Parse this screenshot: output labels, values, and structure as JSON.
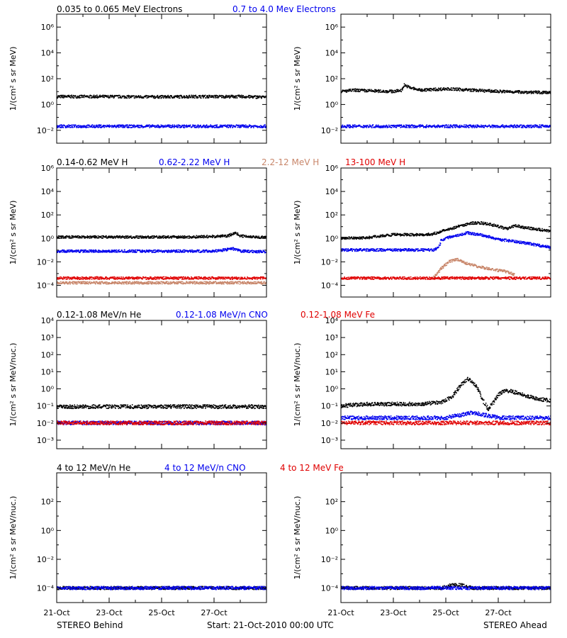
{
  "footer": {
    "left": "STEREO Behind",
    "center": "Start: 21-Oct-2010 00:00 UTC",
    "right": "STEREO Ahead"
  },
  "colors": {
    "black": "#000000",
    "blue": "#0000ee",
    "tan": "#c8866a",
    "red": "#e00000"
  },
  "chart_data": [
    {
      "type": "scatter",
      "row": "electrons",
      "legend": [
        {
          "label": "0.035 to 0.065 MeV Electrons",
          "color": "#000000"
        },
        {
          "label": "0.7 to 4.0 Mev Electrons",
          "color": "#0000ee"
        }
      ],
      "ylabel": "1/(cm² s sr MeV)",
      "y_scale": "log",
      "ylim_log10": [
        -3,
        7
      ],
      "y_tick_exponents": [
        -2,
        0,
        2,
        4,
        6
      ],
      "xlim": [
        0,
        8
      ],
      "x_ticks": [
        "21-Oct",
        "23-Oct",
        "25-Oct",
        "27-Oct"
      ],
      "panels": [
        {
          "name": "STEREO Behind",
          "series": [
            {
              "name": "0.035 to 0.065 MeV Electrons",
              "color": "#000000",
              "x": [
                0,
                1,
                2,
                3,
                4,
                5,
                6,
                7,
                8
              ],
              "log10_y": [
                0.6,
                0.6,
                0.6,
                0.58,
                0.58,
                0.6,
                0.6,
                0.6,
                0.55
              ]
            },
            {
              "name": "0.7 to 4.0 Mev Electrons",
              "color": "#0000ee",
              "x": [
                0,
                1,
                2,
                3,
                4,
                5,
                6,
                7,
                8
              ],
              "log10_y": [
                -1.7,
                -1.7,
                -1.7,
                -1.7,
                -1.7,
                -1.7,
                -1.7,
                -1.7,
                -1.7
              ]
            }
          ]
        },
        {
          "name": "STEREO Ahead",
          "series": [
            {
              "name": "0.035 to 0.065 MeV Electrons",
              "color": "#000000",
              "x": [
                0,
                0.5,
                1,
                2,
                2.3,
                2.4,
                2.6,
                3,
                4,
                5,
                6,
                7,
                8
              ],
              "log10_y": [
                1.0,
                1.1,
                1.05,
                1.0,
                1.1,
                1.5,
                1.3,
                1.1,
                1.2,
                1.1,
                1.0,
                0.95,
                0.9
              ]
            },
            {
              "name": "0.7 to 4.0 Mev Electrons",
              "color": "#0000ee",
              "x": [
                0,
                1,
                2,
                3,
                4,
                5,
                6,
                7,
                8
              ],
              "log10_y": [
                -1.7,
                -1.7,
                -1.7,
                -1.7,
                -1.7,
                -1.7,
                -1.7,
                -1.7,
                -1.7
              ]
            }
          ]
        }
      ]
    },
    {
      "type": "scatter",
      "row": "protons",
      "legend": [
        {
          "label": "0.14-0.62 MeV H",
          "color": "#000000"
        },
        {
          "label": "0.62-2.22 MeV H",
          "color": "#0000ee"
        },
        {
          "label": "2.2-12 MeV H",
          "color": "#c8866a"
        },
        {
          "label": "13-100 MeV H",
          "color": "#e00000"
        }
      ],
      "ylabel": "1/(cm² s sr MeV)",
      "y_scale": "log",
      "ylim_log10": [
        -5,
        6
      ],
      "y_tick_exponents": [
        -4,
        -2,
        0,
        2,
        4,
        6
      ],
      "xlim": [
        0,
        8
      ],
      "x_ticks": [
        "21-Oct",
        "23-Oct",
        "25-Oct",
        "27-Oct"
      ],
      "panels": [
        {
          "name": "STEREO Behind",
          "series": [
            {
              "name": "0.14-0.62 MeV H",
              "color": "#000000",
              "x": [
                0,
                1,
                2,
                3,
                4,
                5,
                6,
                6.5,
                6.8,
                7,
                8
              ],
              "log10_y": [
                0.1,
                0.1,
                0.1,
                0.1,
                0.1,
                0.1,
                0.15,
                0.2,
                0.45,
                0.2,
                0.05
              ]
            },
            {
              "name": "0.62-2.22 MeV H",
              "color": "#0000ee",
              "x": [
                0,
                1,
                2,
                3,
                4,
                5,
                6,
                6.7,
                7,
                8
              ],
              "log10_y": [
                -1.1,
                -1.1,
                -1.1,
                -1.1,
                -1.1,
                -1.1,
                -1.1,
                -0.9,
                -1.1,
                -1.15
              ]
            },
            {
              "name": "2.2-12 MeV H",
              "color": "#c8866a",
              "x": [
                0,
                2,
                4,
                6,
                8
              ],
              "log10_y": [
                -3.8,
                -3.8,
                -3.8,
                -3.8,
                -3.8
              ]
            },
            {
              "name": "13-100 MeV H",
              "color": "#e00000",
              "x": [
                0,
                2,
                4,
                6,
                8
              ],
              "log10_y": [
                -3.4,
                -3.4,
                -3.4,
                -3.4,
                -3.4
              ]
            }
          ]
        },
        {
          "name": "STEREO Ahead",
          "series": [
            {
              "name": "0.14-0.62 MeV H",
              "color": "#000000",
              "x": [
                0,
                1,
                1.5,
                2,
                3,
                3.5,
                3.8,
                4,
                4.3,
                4.6,
                5,
                5.3,
                5.6,
                6,
                6.3,
                6.6,
                7,
                8
              ],
              "log10_y": [
                0,
                0.05,
                0.2,
                0.3,
                0.3,
                0.35,
                0.6,
                0.7,
                0.9,
                1.1,
                1.3,
                1.3,
                1.2,
                1.0,
                0.8,
                1.1,
                0.9,
                0.6
              ]
            },
            {
              "name": "0.62-2.22 MeV H",
              "color": "#0000ee",
              "x": [
                0,
                1,
                2,
                3,
                3.5,
                3.7,
                3.8,
                4.1,
                4.5,
                4.8,
                5,
                5.5,
                6,
                7,
                8
              ],
              "log10_y": [
                -1.0,
                -1.0,
                -1.0,
                -1.0,
                -1.0,
                -0.8,
                -0.2,
                0.1,
                0.3,
                0.45,
                0.4,
                0.2,
                -0.1,
                -0.4,
                -0.8
              ]
            },
            {
              "name": "2.2-12 MeV H",
              "color": "#c8866a",
              "x": [
                3.5,
                3.8,
                4.1,
                4.4,
                4.7,
                5,
                5.4,
                5.8,
                6.2,
                6.6
              ],
              "log10_y": [
                -3.4,
                -2.6,
                -2.0,
                -1.8,
                -2.1,
                -2.3,
                -2.5,
                -2.7,
                -2.8,
                -3.1
              ]
            },
            {
              "name": "13-100 MeV H",
              "color": "#e00000",
              "x": [
                0,
                2,
                4,
                6,
                8
              ],
              "log10_y": [
                -3.4,
                -3.4,
                -3.4,
                -3.4,
                -3.4
              ]
            }
          ]
        }
      ]
    },
    {
      "type": "scatter",
      "row": "heavy-ions-low",
      "legend": [
        {
          "label": "0.12-1.08 MeV/n He",
          "color": "#000000"
        },
        {
          "label": "0.12-1.08 MeV/n CNO",
          "color": "#0000ee"
        },
        {
          "label": "0.12-1.08 MeV Fe",
          "color": "#e00000"
        }
      ],
      "ylabel": "1/(cm² s sr MeV/nuc.)",
      "y_scale": "log",
      "ylim_log10": [
        -3.5,
        4
      ],
      "y_tick_exponents": [
        -3,
        -2,
        -1,
        0,
        1,
        2,
        3,
        4
      ],
      "xlim": [
        0,
        8
      ],
      "x_ticks": [
        "21-Oct",
        "23-Oct",
        "25-Oct",
        "27-Oct"
      ],
      "panels": [
        {
          "name": "STEREO Behind",
          "series": [
            {
              "name": "0.12-1.08 MeV/n He",
              "color": "#000000",
              "x": [
                0,
                2,
                4,
                6,
                8
              ],
              "log10_y": [
                -1.05,
                -1.05,
                -1.05,
                -1.05,
                -1.05
              ]
            },
            {
              "name": "0.12-1.08 MeV/n CNO",
              "color": "#0000ee",
              "x": [
                0,
                2,
                4,
                6,
                8
              ],
              "log10_y": [
                -2.0,
                -2.0,
                -2.0,
                -2.0,
                -2.0
              ]
            },
            {
              "name": "0.12-1.08 MeV Fe",
              "color": "#e00000",
              "x": [
                0,
                2,
                4,
                6,
                8
              ],
              "log10_y": [
                -2.0,
                -2.0,
                -2.0,
                -2.0,
                -2.0
              ]
            }
          ]
        },
        {
          "name": "STEREO Ahead",
          "series": [
            {
              "name": "0.12-1.08 MeV/n He",
              "color": "#000000",
              "x": [
                0,
                1,
                2,
                3,
                3.8,
                4.2,
                4.5,
                4.8,
                5.0,
                5.2,
                5.4,
                5.6,
                5.8,
                6.0,
                6.3,
                6.6,
                7,
                7.5,
                8
              ],
              "log10_y": [
                -1.0,
                -0.9,
                -0.9,
                -0.9,
                -0.8,
                -0.5,
                0.1,
                0.6,
                0.4,
                0.0,
                -0.7,
                -1.2,
                -0.8,
                -0.3,
                -0.1,
                -0.2,
                -0.4,
                -0.6,
                -0.7
              ]
            },
            {
              "name": "0.12-1.08 MeV/n CNO",
              "color": "#0000ee",
              "x": [
                0,
                2,
                4,
                5,
                6,
                8
              ],
              "log10_y": [
                -1.7,
                -1.7,
                -1.7,
                -1.4,
                -1.7,
                -1.7
              ]
            },
            {
              "name": "0.12-1.08 MeV Fe",
              "color": "#e00000",
              "x": [
                0,
                2,
                4,
                6,
                8
              ],
              "log10_y": [
                -2.0,
                -2.0,
                -2.0,
                -2.0,
                -2.0
              ]
            }
          ]
        }
      ]
    },
    {
      "type": "scatter",
      "row": "heavy-ions-high",
      "legend": [
        {
          "label": "4 to 12 MeV/n He",
          "color": "#000000"
        },
        {
          "label": "4 to 12 MeV/n CNO",
          "color": "#0000ee"
        },
        {
          "label": "4 to 12 MeV Fe",
          "color": "#e00000"
        }
      ],
      "ylabel": "1/(cm² s sr MeV/nuc.)",
      "y_scale": "log",
      "ylim_log10": [
        -5,
        4
      ],
      "y_tick_exponents": [
        -4,
        -2,
        0,
        2
      ],
      "xlim": [
        0,
        8
      ],
      "x_ticks": [
        "21-Oct",
        "23-Oct",
        "25-Oct",
        "27-Oct"
      ],
      "panels": [
        {
          "name": "STEREO Behind",
          "series": [
            {
              "name": "4 to 12 MeV/n He",
              "color": "#000000",
              "x": [
                0,
                2,
                4,
                6,
                8
              ],
              "log10_y": [
                -4.0,
                -4.0,
                -4.0,
                -4.0,
                -4.0
              ]
            },
            {
              "name": "4 to 12 MeV/n CNO",
              "color": "#0000ee",
              "x": [
                0,
                2,
                4,
                6,
                8
              ],
              "log10_y": [
                -4.0,
                -4.0,
                -4.0,
                -4.0,
                -4.0
              ]
            }
          ]
        },
        {
          "name": "STEREO Ahead",
          "series": [
            {
              "name": "4 to 12 MeV/n He",
              "color": "#000000",
              "x": [
                0,
                2,
                3.8,
                4.2,
                4.6,
                5,
                8
              ],
              "log10_y": [
                -4.0,
                -4.0,
                -4.0,
                -3.8,
                -3.8,
                -4.0,
                -4.0
              ]
            },
            {
              "name": "4 to 12 MeV/n CNO",
              "color": "#0000ee",
              "x": [
                0,
                2,
                4,
                6,
                8
              ],
              "log10_y": [
                -4.0,
                -4.0,
                -4.0,
                -4.0,
                -4.0
              ]
            }
          ]
        }
      ]
    }
  ]
}
